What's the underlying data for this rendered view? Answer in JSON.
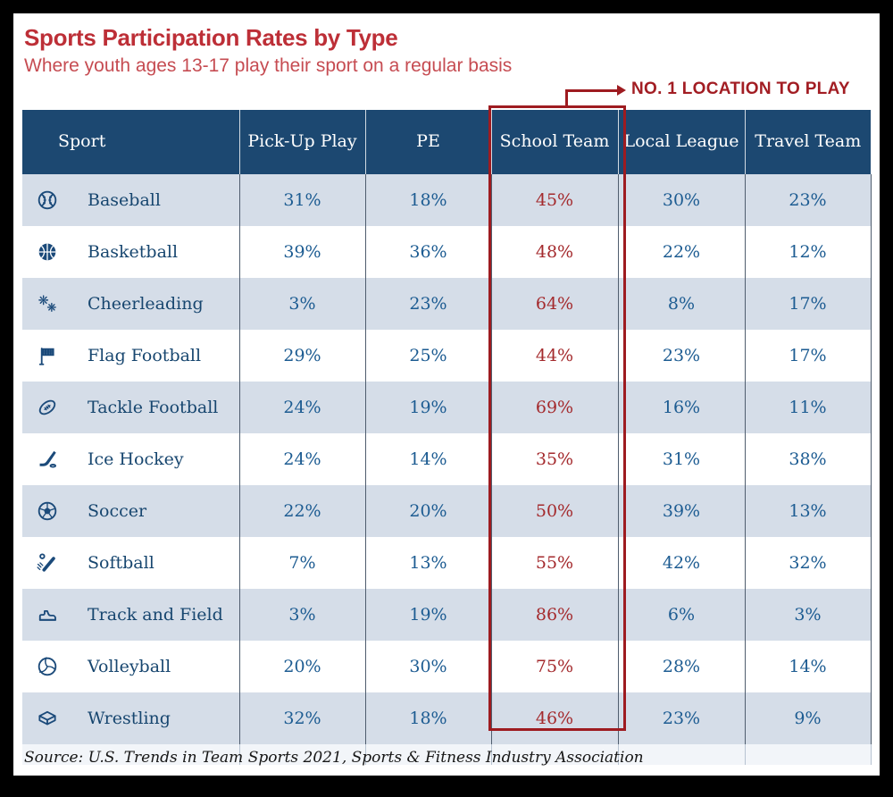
{
  "page": {
    "title": "Sports Participation Rates by Type",
    "subtitle": "Where youth ages 13-17 play their sport on a regular basis",
    "callout": "NO. 1 LOCATION TO PLAY",
    "source": "Source: U.S. Trends in Team Sports 2021, Sports & Fitness Industry Association"
  },
  "colors": {
    "header_bg": "#1c4871",
    "row_alt_bg": "#d5dde8",
    "sport_text": "#17466f",
    "value_text": "#1d5c92",
    "highlight_red": "#9e1b20",
    "highlight_value_red": "#a42a2d",
    "title_red": "#bd2f37"
  },
  "table": {
    "columns": [
      "Sport",
      "Pick-Up Play",
      "PE",
      "School Team",
      "Local League",
      "Travel Team"
    ],
    "highlighted_column": "School Team",
    "rows": [
      {
        "sport": "Baseball",
        "icon": "baseball-icon",
        "values": [
          "31%",
          "18%",
          "45%",
          "30%",
          "23%"
        ]
      },
      {
        "sport": "Basketball",
        "icon": "basketball-icon",
        "values": [
          "39%",
          "36%",
          "48%",
          "22%",
          "12%"
        ]
      },
      {
        "sport": "Cheerleading",
        "icon": "pom-poms-icon",
        "values": [
          "3%",
          "23%",
          "64%",
          "8%",
          "17%"
        ]
      },
      {
        "sport": "Flag Football",
        "icon": "flag-icon",
        "values": [
          "29%",
          "25%",
          "44%",
          "23%",
          "17%"
        ]
      },
      {
        "sport": "Tackle Football",
        "icon": "football-icon",
        "values": [
          "24%",
          "19%",
          "69%",
          "16%",
          "11%"
        ]
      },
      {
        "sport": "Ice Hockey",
        "icon": "hockey-stick-icon",
        "values": [
          "24%",
          "14%",
          "35%",
          "31%",
          "38%"
        ]
      },
      {
        "sport": "Soccer",
        "icon": "soccer-ball-icon",
        "values": [
          "22%",
          "20%",
          "50%",
          "39%",
          "13%"
        ]
      },
      {
        "sport": "Softball",
        "icon": "softball-bat-icon",
        "values": [
          "7%",
          "13%",
          "55%",
          "42%",
          "32%"
        ]
      },
      {
        "sport": "Track and Field",
        "icon": "track-shoe-icon",
        "values": [
          "3%",
          "19%",
          "86%",
          "6%",
          "3%"
        ]
      },
      {
        "sport": "Volleyball",
        "icon": "volleyball-icon",
        "values": [
          "20%",
          "30%",
          "75%",
          "28%",
          "14%"
        ]
      },
      {
        "sport": "Wrestling",
        "icon": "wrestling-ring-icon",
        "values": [
          "32%",
          "18%",
          "46%",
          "23%",
          "9%"
        ]
      }
    ]
  },
  "chart_data": {
    "type": "table",
    "title": "Sports Participation Rates by Type",
    "subtitle": "Where youth ages 13-17 play their sport on a regular basis",
    "annotation": "NO. 1 LOCATION TO PLAY (School Team column highlighted)",
    "columns": [
      "Pick-Up Play",
      "PE",
      "School Team",
      "Local League",
      "Travel Team"
    ],
    "categories": [
      "Baseball",
      "Basketball",
      "Cheerleading",
      "Flag Football",
      "Tackle Football",
      "Ice Hockey",
      "Soccer",
      "Softball",
      "Track and Field",
      "Volleyball",
      "Wrestling"
    ],
    "series": [
      {
        "name": "Pick-Up Play",
        "values": [
          31,
          39,
          3,
          29,
          24,
          24,
          22,
          7,
          3,
          20,
          32
        ]
      },
      {
        "name": "PE",
        "values": [
          18,
          36,
          23,
          25,
          19,
          14,
          20,
          13,
          19,
          30,
          18
        ]
      },
      {
        "name": "School Team",
        "values": [
          45,
          48,
          64,
          44,
          69,
          35,
          50,
          55,
          86,
          75,
          46
        ]
      },
      {
        "name": "Local League",
        "values": [
          30,
          22,
          8,
          23,
          16,
          31,
          39,
          42,
          6,
          28,
          23
        ]
      },
      {
        "name": "Travel Team",
        "values": [
          23,
          12,
          17,
          17,
          11,
          38,
          13,
          32,
          3,
          14,
          9
        ]
      }
    ],
    "units": "%",
    "source": "Source: U.S. Trends in Team Sports 2021, Sports & Fitness Industry Association"
  }
}
